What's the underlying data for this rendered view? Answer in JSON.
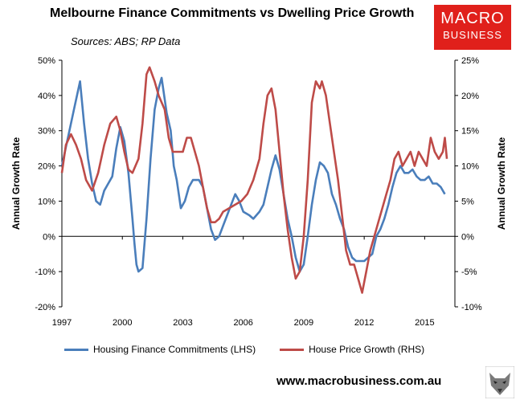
{
  "header": {
    "title": "Melbourne Finance Commitments vs Dwelling Price Growth",
    "subtitle": "Sources: ABS; RP Data"
  },
  "logo": {
    "line1": "MACRO",
    "line2": "BUSINESS",
    "color": "#e0201b"
  },
  "footer": {
    "url": "www.macrobusiness.com.au"
  },
  "chart_data": {
    "type": "line",
    "ylabel": "Annual Growth Rate",
    "y2label": "Annual Growth Rate",
    "xlim": [
      1997,
      2016.5
    ],
    "ylim": [
      -20,
      50
    ],
    "y2lim": [
      -10,
      25
    ],
    "x_ticks": [
      1997,
      2000,
      2003,
      2006,
      2009,
      2012,
      2015
    ],
    "x_tick_labels": [
      "1997",
      "2000",
      "2003",
      "2006",
      "2009",
      "2012",
      "2015"
    ],
    "y_ticks": [
      -20,
      -10,
      0,
      10,
      20,
      30,
      40,
      50
    ],
    "y_tick_labels": [
      "-20%",
      "-10%",
      "0%",
      "10%",
      "20%",
      "30%",
      "40%",
      "50%"
    ],
    "y2_ticks": [
      -10,
      -5,
      0,
      5,
      10,
      15,
      20,
      25
    ],
    "y2_tick_labels": [
      "-10%",
      "-5%",
      "0%",
      "5%",
      "10%",
      "15%",
      "20%",
      "25%"
    ],
    "legend_position": "bottom",
    "grid": false,
    "series": [
      {
        "name": "Housing Finance Commitments (LHS)",
        "axis": "left",
        "color": "#4a7ebb",
        "points": [
          [
            1997.0,
            20
          ],
          [
            1997.3,
            28
          ],
          [
            1997.6,
            36
          ],
          [
            1997.9,
            44
          ],
          [
            1998.1,
            32
          ],
          [
            1998.3,
            22
          ],
          [
            1998.5,
            15
          ],
          [
            1998.7,
            10
          ],
          [
            1998.9,
            9
          ],
          [
            1999.1,
            13
          ],
          [
            1999.3,
            15
          ],
          [
            1999.5,
            17
          ],
          [
            1999.7,
            25
          ],
          [
            1999.9,
            31
          ],
          [
            2000.1,
            27
          ],
          [
            2000.3,
            18
          ],
          [
            2000.5,
            5
          ],
          [
            2000.6,
            -2
          ],
          [
            2000.7,
            -8
          ],
          [
            2000.8,
            -10
          ],
          [
            2001.0,
            -9
          ],
          [
            2001.2,
            5
          ],
          [
            2001.4,
            22
          ],
          [
            2001.6,
            36
          ],
          [
            2001.8,
            42
          ],
          [
            2001.95,
            45
          ],
          [
            2002.2,
            35
          ],
          [
            2002.4,
            30
          ],
          [
            2002.55,
            20
          ],
          [
            2002.7,
            16
          ],
          [
            2002.9,
            8
          ],
          [
            2003.1,
            10
          ],
          [
            2003.3,
            14
          ],
          [
            2003.5,
            16
          ],
          [
            2003.8,
            16
          ],
          [
            2004.0,
            14
          ],
          [
            2004.2,
            8
          ],
          [
            2004.4,
            2
          ],
          [
            2004.6,
            -1
          ],
          [
            2004.8,
            0
          ],
          [
            2005.0,
            3
          ],
          [
            2005.2,
            6
          ],
          [
            2005.4,
            9
          ],
          [
            2005.6,
            12
          ],
          [
            2005.8,
            10
          ],
          [
            2006.0,
            7
          ],
          [
            2006.3,
            6
          ],
          [
            2006.5,
            5
          ],
          [
            2006.8,
            7
          ],
          [
            2007.0,
            9
          ],
          [
            2007.2,
            14
          ],
          [
            2007.4,
            19
          ],
          [
            2007.6,
            23
          ],
          [
            2007.8,
            19
          ],
          [
            2008.0,
            12
          ],
          [
            2008.2,
            5
          ],
          [
            2008.4,
            0
          ],
          [
            2008.6,
            -6
          ],
          [
            2008.8,
            -10
          ],
          [
            2009.0,
            -8
          ],
          [
            2009.2,
            0
          ],
          [
            2009.4,
            9
          ],
          [
            2009.6,
            16
          ],
          [
            2009.8,
            21
          ],
          [
            2010.0,
            20
          ],
          [
            2010.2,
            18
          ],
          [
            2010.4,
            12
          ],
          [
            2010.6,
            9
          ],
          [
            2010.8,
            5
          ],
          [
            2011.0,
            2
          ],
          [
            2011.2,
            -3
          ],
          [
            2011.4,
            -6
          ],
          [
            2011.6,
            -7
          ],
          [
            2011.8,
            -7
          ],
          [
            2012.0,
            -7
          ],
          [
            2012.2,
            -6
          ],
          [
            2012.4,
            -5
          ],
          [
            2012.6,
            0
          ],
          [
            2012.8,
            2
          ],
          [
            2013.0,
            5
          ],
          [
            2013.2,
            9
          ],
          [
            2013.4,
            14
          ],
          [
            2013.6,
            18
          ],
          [
            2013.8,
            20
          ],
          [
            2014.0,
            18
          ],
          [
            2014.2,
            18
          ],
          [
            2014.4,
            19
          ],
          [
            2014.6,
            17
          ],
          [
            2014.8,
            16
          ],
          [
            2015.0,
            16
          ],
          [
            2015.2,
            17
          ],
          [
            2015.4,
            15
          ],
          [
            2015.6,
            15
          ],
          [
            2015.8,
            14
          ],
          [
            2016.0,
            12
          ]
        ]
      },
      {
        "name": "House Price Growth (RHS)",
        "axis": "right",
        "color": "#be4b48",
        "points": [
          [
            1997.0,
            9
          ],
          [
            1997.2,
            13
          ],
          [
            1997.45,
            14.5
          ],
          [
            1997.7,
            13
          ],
          [
            1997.95,
            11
          ],
          [
            1998.2,
            8
          ],
          [
            1998.5,
            6.5
          ],
          [
            1998.8,
            9
          ],
          [
            1999.1,
            13
          ],
          [
            1999.4,
            16
          ],
          [
            1999.7,
            17
          ],
          [
            1999.9,
            15
          ],
          [
            2000.1,
            12
          ],
          [
            2000.3,
            9.5
          ],
          [
            2000.5,
            9
          ],
          [
            2000.8,
            11
          ],
          [
            2001.0,
            16
          ],
          [
            2001.2,
            23
          ],
          [
            2001.35,
            24
          ],
          [
            2001.6,
            22
          ],
          [
            2001.8,
            20
          ],
          [
            2002.1,
            18
          ],
          [
            2002.3,
            14
          ],
          [
            2002.5,
            12
          ],
          [
            2002.8,
            12
          ],
          [
            2003.0,
            12
          ],
          [
            2003.2,
            14
          ],
          [
            2003.4,
            14
          ],
          [
            2003.6,
            12
          ],
          [
            2003.8,
            10
          ],
          [
            2004.0,
            7
          ],
          [
            2004.2,
            4
          ],
          [
            2004.4,
            2
          ],
          [
            2004.6,
            2
          ],
          [
            2004.8,
            2.5
          ],
          [
            2005.0,
            3.5
          ],
          [
            2005.3,
            4
          ],
          [
            2005.6,
            4.5
          ],
          [
            2005.9,
            5
          ],
          [
            2006.2,
            6
          ],
          [
            2006.5,
            8
          ],
          [
            2006.8,
            11
          ],
          [
            2007.0,
            16
          ],
          [
            2007.2,
            20
          ],
          [
            2007.4,
            21
          ],
          [
            2007.6,
            18
          ],
          [
            2007.8,
            12
          ],
          [
            2008.0,
            6
          ],
          [
            2008.2,
            1
          ],
          [
            2008.4,
            -3
          ],
          [
            2008.6,
            -6
          ],
          [
            2008.8,
            -5
          ],
          [
            2009.0,
            0
          ],
          [
            2009.2,
            8
          ],
          [
            2009.4,
            19
          ],
          [
            2009.6,
            22
          ],
          [
            2009.8,
            21
          ],
          [
            2009.9,
            22
          ],
          [
            2010.1,
            20
          ],
          [
            2010.3,
            16
          ],
          [
            2010.5,
            12
          ],
          [
            2010.7,
            8
          ],
          [
            2010.9,
            3
          ],
          [
            2011.1,
            -2
          ],
          [
            2011.3,
            -4
          ],
          [
            2011.5,
            -4
          ],
          [
            2011.7,
            -6
          ],
          [
            2011.9,
            -8
          ],
          [
            2012.1,
            -5
          ],
          [
            2012.3,
            -2
          ],
          [
            2012.5,
            0
          ],
          [
            2012.7,
            2
          ],
          [
            2012.9,
            4
          ],
          [
            2013.1,
            6
          ],
          [
            2013.3,
            8
          ],
          [
            2013.5,
            11
          ],
          [
            2013.7,
            12
          ],
          [
            2013.9,
            10
          ],
          [
            2014.1,
            11
          ],
          [
            2014.3,
            12
          ],
          [
            2014.5,
            10
          ],
          [
            2014.7,
            12
          ],
          [
            2014.9,
            11
          ],
          [
            2015.1,
            10
          ],
          [
            2015.3,
            14
          ],
          [
            2015.5,
            12
          ],
          [
            2015.7,
            11
          ],
          [
            2015.9,
            12
          ],
          [
            2016.0,
            14
          ],
          [
            2016.1,
            11
          ]
        ]
      }
    ]
  }
}
